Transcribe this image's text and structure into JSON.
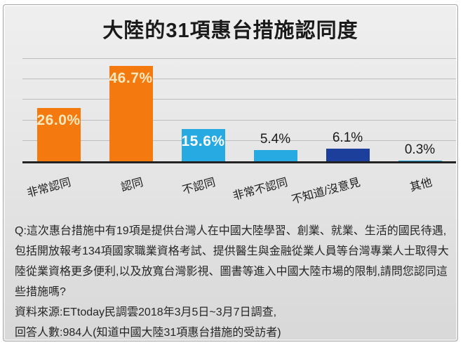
{
  "chart_data": {
    "type": "bar",
    "title": "大陸的31項惠台措施認同度",
    "categories": [
      "非常認同",
      "認同",
      "不認同",
      "非常不認同",
      "不知道/沒意見",
      "其他"
    ],
    "values": [
      26.0,
      46.7,
      15.6,
      5.4,
      6.1,
      0.3
    ],
    "value_labels": [
      "26.0%",
      "46.7%",
      "15.6%",
      "5.4%",
      "6.1%",
      "0.3%"
    ],
    "label_placement": [
      "inside",
      "inside",
      "inside",
      "above",
      "above",
      "above"
    ],
    "label_text_colors": [
      "#FBE8BD",
      "#FBE8BD",
      "#FFFFFF",
      "#1A1A1A",
      "#1A1A1A",
      "#1A1A1A"
    ],
    "bar_colors": [
      "#F4790F",
      "#F4790F",
      "#27AAE1",
      "#27AAE1",
      "#1B3F9B",
      "#27AAE1"
    ],
    "xlabel": "",
    "ylabel": "",
    "ylim": [
      0,
      50
    ],
    "gridline_interval": 10,
    "grid": true,
    "legend": "none",
    "x_tick_rotation_deg": -15
  },
  "footer": {
    "question": "Q:這次惠台措施中有19項是提供台灣人在中國大陸學習、創業、就業、生活的國民待遇,包括開放報考134項國家職業資格考試、提供醫生與金融從業人員等台灣專業人士取得大陸從業資格更多便利,以及放寬台灣影視、圖書等進入中國大陸市場的限制,請問您認同這些措施嗎?",
    "source": "資料來源:ETtoday民調雲2018年3月5日~3月7日調查,",
    "respondents": "回答人數:984人(知道中國大陸31項惠台措施的受訪者)"
  },
  "colors": {
    "orange": "#F4790F",
    "light_blue": "#27AAE1",
    "dark_blue": "#1B3F9B",
    "card_background": "#E6E6E6",
    "gridline": "#BDBDBD",
    "axis_line": "#222222",
    "title_text": "#1A1A1A",
    "footer_text": "#262626",
    "inside_label_cream": "#FBE8BD"
  }
}
